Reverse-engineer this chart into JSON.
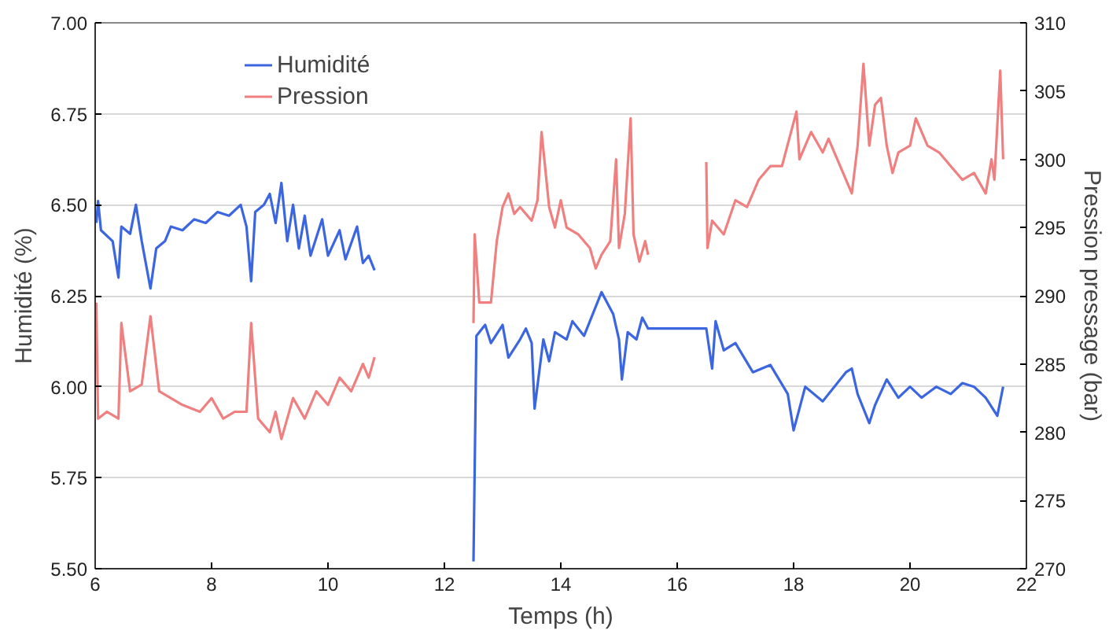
{
  "chart_data": {
    "type": "line",
    "xlabel": "Temps (h)",
    "ylabel": "Humidité (%)",
    "y2label": "Pression pressage (bar)",
    "xlim": [
      6,
      22
    ],
    "xticks": [
      6,
      8,
      10,
      12,
      14,
      16,
      18,
      20,
      22
    ],
    "ylim": [
      5.5,
      7.0
    ],
    "yticks": [
      {
        "value": 5.5,
        "label": "5.50"
      },
      {
        "value": 5.75,
        "label": "5.75"
      },
      {
        "value": 6.0,
        "label": "6.00"
      },
      {
        "value": 6.25,
        "label": "6.25"
      },
      {
        "value": 6.5,
        "label": "6.50"
      },
      {
        "value": 6.75,
        "label": "6.75"
      },
      {
        "value": 7.0,
        "label": "7.00"
      }
    ],
    "y2lim": [
      270,
      310
    ],
    "y2ticks": [
      270,
      275,
      280,
      285,
      290,
      295,
      300,
      305,
      310
    ],
    "grid": "y",
    "legend": "top left",
    "series": [
      {
        "name": "Humidité",
        "color": "#3b66e0",
        "x": [
          6.02,
          6.05,
          6.1,
          6.3,
          6.4,
          6.45,
          6.6,
          6.7,
          6.8,
          6.95,
          7.05,
          7.2,
          7.3,
          7.5,
          7.7,
          7.9,
          8.1,
          8.3,
          8.5,
          8.6,
          8.68,
          8.75,
          8.9,
          9.0,
          9.1,
          9.2,
          9.3,
          9.4,
          9.5,
          9.6,
          9.7,
          9.9,
          10.0,
          10.2,
          10.3,
          10.5,
          10.6,
          10.7,
          10.8,
          11.6,
          12.5,
          12.55,
          12.7,
          12.8,
          13.0,
          13.1,
          13.3,
          13.4,
          13.5,
          13.55,
          13.7,
          13.8,
          13.9,
          14.1,
          14.2,
          14.4,
          14.6,
          14.7,
          14.9,
          15.0,
          15.05,
          15.15,
          15.3,
          15.4,
          15.5,
          16.5,
          16.6,
          16.66,
          16.8,
          17.0,
          17.3,
          17.6,
          17.9,
          18.0,
          18.2,
          18.5,
          18.9,
          19.0,
          19.1,
          19.3,
          19.4,
          19.6,
          19.8,
          20.0,
          20.2,
          20.45,
          20.7,
          20.9,
          21.1,
          21.3,
          21.5,
          21.6
        ],
        "values": [
          6.45,
          6.51,
          6.43,
          6.4,
          6.3,
          6.44,
          6.42,
          6.5,
          6.4,
          6.27,
          6.38,
          6.4,
          6.44,
          6.43,
          6.46,
          6.45,
          6.48,
          6.47,
          6.5,
          6.44,
          6.29,
          6.48,
          6.5,
          6.53,
          6.45,
          6.56,
          6.4,
          6.5,
          6.38,
          6.47,
          6.36,
          6.46,
          6.36,
          6.43,
          6.35,
          6.44,
          6.34,
          6.36,
          6.32,
          null,
          5.52,
          6.14,
          6.17,
          6.12,
          6.17,
          6.08,
          6.13,
          6.16,
          6.12,
          5.94,
          6.13,
          6.07,
          6.15,
          6.13,
          6.18,
          6.14,
          6.22,
          6.26,
          6.2,
          6.13,
          6.02,
          6.15,
          6.13,
          6.19,
          6.16,
          6.16,
          6.05,
          6.18,
          6.1,
          6.12,
          6.04,
          6.06,
          5.98,
          5.88,
          6.0,
          5.96,
          6.04,
          6.05,
          5.98,
          5.9,
          5.95,
          6.02,
          5.97,
          6.0,
          5.97,
          6.0,
          5.98,
          6.01,
          6.0,
          5.97,
          5.92,
          6.0
        ]
      },
      {
        "name": "Pression",
        "color": "#f08080",
        "axis": "y2",
        "x": [
          6.02,
          6.05,
          6.2,
          6.4,
          6.45,
          6.6,
          6.8,
          6.95,
          7.1,
          7.3,
          7.5,
          7.8,
          8.0,
          8.2,
          8.4,
          8.6,
          8.68,
          8.8,
          9.0,
          9.1,
          9.2,
          9.4,
          9.6,
          9.8,
          10.0,
          10.2,
          10.4,
          10.6,
          10.7,
          10.8,
          11.6,
          12.5,
          12.52,
          12.6,
          12.8,
          12.9,
          13.0,
          13.1,
          13.2,
          13.3,
          13.5,
          13.6,
          13.67,
          13.8,
          13.9,
          14.0,
          14.1,
          14.3,
          14.5,
          14.6,
          14.7,
          14.85,
          14.95,
          15.0,
          15.1,
          15.2,
          15.25,
          15.35,
          15.45,
          15.5,
          16.0,
          16.5,
          16.52,
          16.6,
          16.8,
          17.0,
          17.2,
          17.4,
          17.6,
          17.8,
          18.05,
          18.1,
          18.3,
          18.5,
          18.6,
          18.8,
          19.0,
          19.1,
          19.2,
          19.3,
          19.4,
          19.5,
          19.6,
          19.7,
          19.8,
          20.0,
          20.1,
          20.3,
          20.5,
          20.7,
          20.9,
          21.1,
          21.3,
          21.4,
          21.45,
          21.55,
          21.6
        ],
        "values": [
          289.5,
          281,
          281.5,
          281,
          288,
          283,
          283.5,
          288.5,
          283,
          282.5,
          282,
          281.5,
          282.5,
          281,
          281.5,
          281.5,
          288,
          281,
          280,
          281.5,
          279.5,
          282.5,
          281,
          283,
          282,
          284,
          283,
          285,
          284,
          285.5,
          null,
          288,
          294.5,
          289.5,
          289.5,
          294,
          296.5,
          297.5,
          296,
          296.5,
          295.5,
          297,
          302,
          296.5,
          295,
          297,
          295,
          294.5,
          293.5,
          292,
          293,
          294,
          300,
          293.5,
          296,
          303,
          294.5,
          292.5,
          294,
          293,
          null,
          299.8,
          293.5,
          295.5,
          294.5,
          297,
          296.5,
          298.5,
          299.5,
          299.5,
          303.5,
          300,
          302,
          300.5,
          301.5,
          299.5,
          297.5,
          301,
          307,
          301,
          304,
          304.5,
          301,
          299,
          300.5,
          301,
          303,
          301,
          300.5,
          299.5,
          298.5,
          299,
          297.5,
          300,
          298.5,
          306.5,
          300
        ]
      }
    ]
  }
}
